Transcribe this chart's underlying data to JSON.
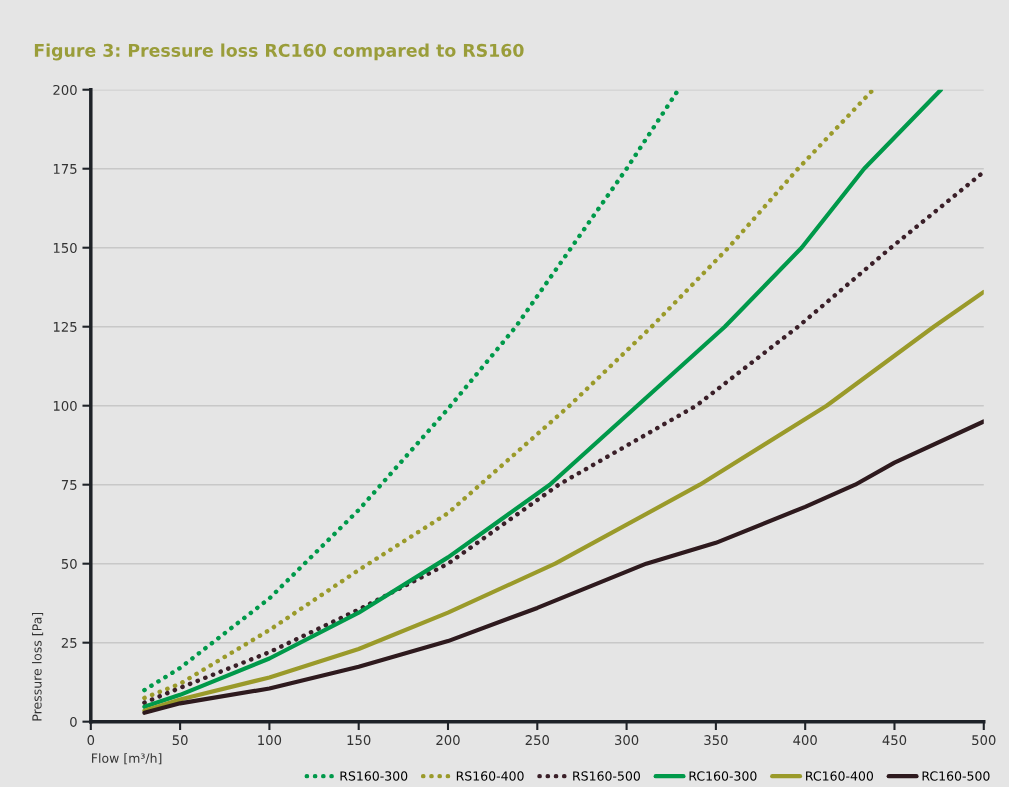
{
  "chart_data": {
    "type": "line",
    "title": "Figure 3: Pressure loss RC160 compared to RS160",
    "xlabel": "Flow [m³/h]",
    "ylabel": "Pressure loss [Pa]",
    "xlim": [
      0,
      500
    ],
    "xticks": [
      0,
      50,
      100,
      150,
      200,
      250,
      300,
      350,
      400,
      450,
      500
    ],
    "ylim": [
      0,
      200
    ],
    "yticks": [
      0,
      25,
      50,
      75,
      100,
      125,
      150,
      175,
      200
    ],
    "grid": "y",
    "legend": "bottom right",
    "marker": "none",
    "series": [
      {
        "name": "RS160-300",
        "color": "#00994a",
        "line_style": "dotted",
        "x": [
          30,
          50,
          100,
          150,
          200,
          238,
          269,
          300,
          329
        ],
        "values": [
          10,
          17,
          39,
          67,
          99,
          125,
          150,
          175,
          200
        ]
      },
      {
        "name": "RS160-400",
        "color": "#9a9a2a",
        "line_style": "dotted",
        "x": [
          30,
          50,
          100,
          150,
          200,
          268,
          314,
          357,
          396,
          438
        ],
        "values": [
          7.5,
          12,
          29,
          48,
          66,
          100,
          125,
          150,
          175,
          200
        ]
      },
      {
        "name": "RS160-500",
        "color": "#3a1f28",
        "line_style": "dotted",
        "x": [
          30,
          50,
          100,
          150,
          200,
          262,
          339,
          396,
          448,
          500
        ],
        "values": [
          6,
          10.7,
          22,
          35.5,
          50,
          75,
          100,
          125,
          150,
          174
        ]
      },
      {
        "name": "RC160-300",
        "color": "#00994a",
        "line_style": "solid",
        "x": [
          30,
          50,
          100,
          150,
          200,
          257,
          306,
          355,
          398,
          433,
          476
        ],
        "values": [
          4.7,
          8.5,
          20,
          34.5,
          52,
          75,
          100,
          125,
          150,
          175,
          200
        ]
      },
      {
        "name": "RC160-400",
        "color": "#9a9a2a",
        "line_style": "solid",
        "x": [
          30,
          50,
          100,
          150,
          200,
          260,
          341,
          412,
          472,
          500
        ],
        "values": [
          3.5,
          7,
          14,
          23,
          34.5,
          50,
          75,
          100,
          125,
          136
        ]
      },
      {
        "name": "RC160-500",
        "color": "#2e1a1e",
        "line_style": "solid",
        "x": [
          30,
          50,
          100,
          150,
          200,
          250,
          311,
          350,
          400,
          428,
          450,
          500
        ],
        "values": [
          2.8,
          5.8,
          10.5,
          17.4,
          25.5,
          36,
          50,
          56.6,
          68,
          75,
          82,
          95
        ]
      }
    ]
  }
}
